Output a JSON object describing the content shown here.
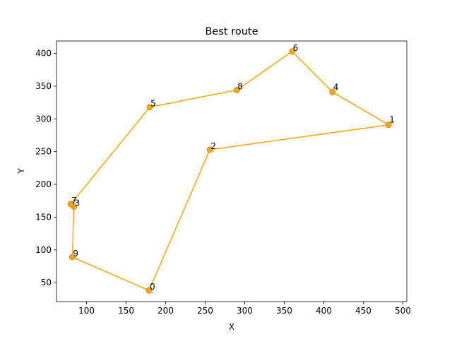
{
  "chart_data": {
    "type": "line",
    "title": "Best route",
    "xlabel": "X",
    "ylabel": "Y",
    "xlim": [
      62,
      505
    ],
    "ylim": [
      21,
      419
    ],
    "xticks": [
      100,
      150,
      200,
      250,
      300,
      350,
      400,
      450,
      500
    ],
    "yticks": [
      50,
      100,
      150,
      200,
      250,
      300,
      350,
      400
    ],
    "line_color": "#FFA500",
    "marker_color": "#FFA500",
    "grid": false,
    "legend": "none",
    "points": [
      {
        "label": "0",
        "x": 179,
        "y": 38
      },
      {
        "label": "1",
        "x": 482,
        "y": 291
      },
      {
        "label": "2",
        "x": 256,
        "y": 253
      },
      {
        "label": "3",
        "x": 84,
        "y": 166
      },
      {
        "label": "4",
        "x": 411,
        "y": 341
      },
      {
        "label": "5",
        "x": 180,
        "y": 318
      },
      {
        "label": "6",
        "x": 360,
        "y": 403
      },
      {
        "label": "7",
        "x": 80,
        "y": 170
      },
      {
        "label": "8",
        "x": 290,
        "y": 344
      },
      {
        "label": "9",
        "x": 82,
        "y": 89
      }
    ],
    "route": [
      "1",
      "4",
      "6",
      "8",
      "5",
      "7",
      "3",
      "9",
      "0",
      "2",
      "1"
    ],
    "highlight_labels": [
      {
        "label": "1",
        "color": "#FF0000"
      },
      {
        "label": "4",
        "color": "#008000"
      }
    ]
  }
}
